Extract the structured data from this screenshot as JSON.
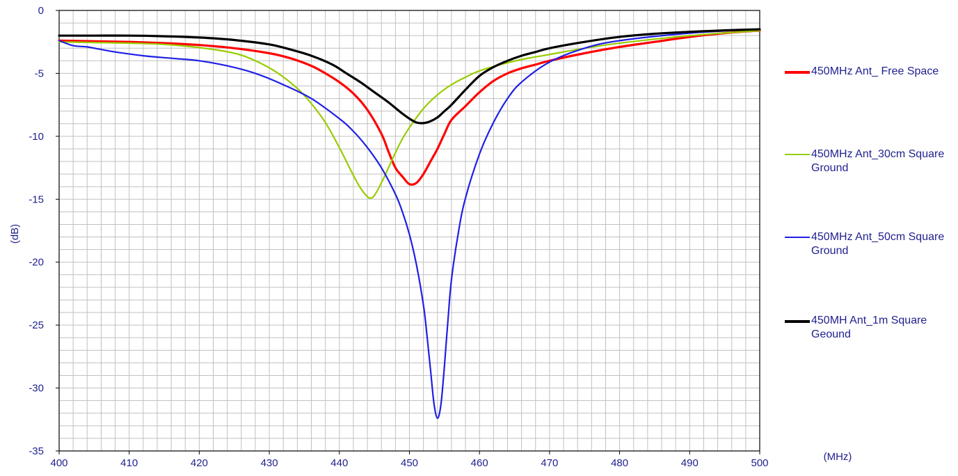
{
  "chart_data": {
    "type": "line",
    "title": "",
    "xlabel": "(MHz)",
    "ylabel": "(dB)",
    "xlim": [
      400,
      500
    ],
    "ylim": [
      -35,
      0
    ],
    "x_ticks": [
      400,
      410,
      420,
      430,
      440,
      450,
      460,
      470,
      480,
      490,
      500
    ],
    "y_ticks": [
      0,
      -5,
      -10,
      -15,
      -20,
      -25,
      -30,
      -35
    ],
    "x_tick_labels": [
      "400",
      "410",
      "420",
      "430",
      "440",
      "450",
      "460",
      "470",
      "480",
      "490",
      "500"
    ],
    "y_tick_labels": [
      "0",
      "-5",
      "-10",
      "-15",
      "-20",
      "-25",
      "-30",
      "-35"
    ],
    "grid": true,
    "legend_position": "right",
    "series": [
      {
        "name": "450MHz Ant_ Free Space",
        "color": "#ff0000",
        "x": [
          400,
          405,
          410,
          415,
          420,
          425,
          430,
          433,
          436,
          438,
          440,
          442,
          444,
          446,
          447,
          448,
          449,
          450,
          451,
          452,
          453,
          454,
          455,
          456,
          458,
          460,
          462,
          464,
          466,
          468,
          470,
          475,
          480,
          485,
          490,
          495,
          500
        ],
        "y": [
          -2.4,
          -2.45,
          -2.5,
          -2.6,
          -2.75,
          -3.0,
          -3.4,
          -3.8,
          -4.4,
          -5.0,
          -5.7,
          -6.6,
          -7.9,
          -9.8,
          -11.2,
          -12.5,
          -13.2,
          -13.8,
          -13.7,
          -13.0,
          -12.0,
          -11.0,
          -9.8,
          -8.7,
          -7.6,
          -6.5,
          -5.6,
          -5.0,
          -4.6,
          -4.3,
          -4.0,
          -3.4,
          -2.9,
          -2.5,
          -2.1,
          -1.8,
          -1.6
        ]
      },
      {
        "name": "450MHz Ant_30cm Square Ground",
        "color": "#99cc00",
        "x": [
          400,
          405,
          410,
          415,
          420,
          425,
          428,
          431,
          434,
          436,
          438,
          440,
          441,
          442,
          443,
          444,
          444.5,
          445,
          446,
          447,
          448,
          449,
          450,
          452,
          454,
          456,
          458,
          460,
          463,
          466,
          470,
          475,
          480,
          490,
          500
        ],
        "y": [
          -2.5,
          -2.55,
          -2.6,
          -2.7,
          -2.95,
          -3.4,
          -4.0,
          -4.9,
          -6.2,
          -7.4,
          -8.9,
          -10.9,
          -12.0,
          -13.1,
          -14.1,
          -14.8,
          -14.9,
          -14.7,
          -13.7,
          -12.5,
          -11.3,
          -10.2,
          -9.3,
          -7.8,
          -6.7,
          -5.9,
          -5.3,
          -4.8,
          -4.3,
          -3.9,
          -3.5,
          -3.0,
          -2.6,
          -2.0,
          -1.6
        ]
      },
      {
        "name": "450MHz Ant_50cm Square Ground",
        "color": "#1f1fe6",
        "x": [
          400,
          402,
          404,
          406,
          408,
          412,
          416,
          420,
          424,
          428,
          432,
          436,
          440,
          442,
          444,
          446,
          448,
          449,
          450,
          451,
          452,
          452.5,
          453,
          453.5,
          454,
          454.5,
          455,
          455.5,
          456,
          457,
          458,
          460,
          462,
          464,
          466,
          470,
          475,
          480,
          490,
          500
        ],
        "y": [
          -2.4,
          -2.8,
          -2.9,
          -3.1,
          -3.3,
          -3.6,
          -3.8,
          -4.0,
          -4.4,
          -5.0,
          -5.9,
          -7.0,
          -8.6,
          -9.6,
          -10.9,
          -12.5,
          -14.6,
          -16.0,
          -17.8,
          -20.2,
          -23.4,
          -25.8,
          -28.5,
          -31.2,
          -32.4,
          -31.3,
          -28.2,
          -24.6,
          -21.4,
          -17.6,
          -14.9,
          -11.4,
          -8.9,
          -7.0,
          -5.7,
          -4.1,
          -3.0,
          -2.4,
          -1.8,
          -1.5
        ]
      },
      {
        "name": "450MH Ant_1m Square Geound",
        "color": "#000000",
        "x": [
          400,
          405,
          410,
          415,
          420,
          425,
          430,
          433,
          436,
          439,
          441,
          443,
          445,
          447,
          449,
          450,
          451,
          452,
          453,
          454,
          455,
          456,
          458,
          460,
          462,
          464,
          466,
          468,
          470,
          475,
          480,
          485,
          490,
          495,
          500
        ],
        "y": [
          -2.0,
          -2.0,
          -2.0,
          -2.05,
          -2.15,
          -2.35,
          -2.7,
          -3.1,
          -3.6,
          -4.3,
          -5.0,
          -5.7,
          -6.5,
          -7.3,
          -8.2,
          -8.6,
          -8.9,
          -8.95,
          -8.8,
          -8.5,
          -8.0,
          -7.5,
          -6.3,
          -5.2,
          -4.5,
          -4.0,
          -3.6,
          -3.3,
          -3.0,
          -2.5,
          -2.1,
          -1.85,
          -1.7,
          -1.58,
          -1.5
        ]
      }
    ]
  }
}
